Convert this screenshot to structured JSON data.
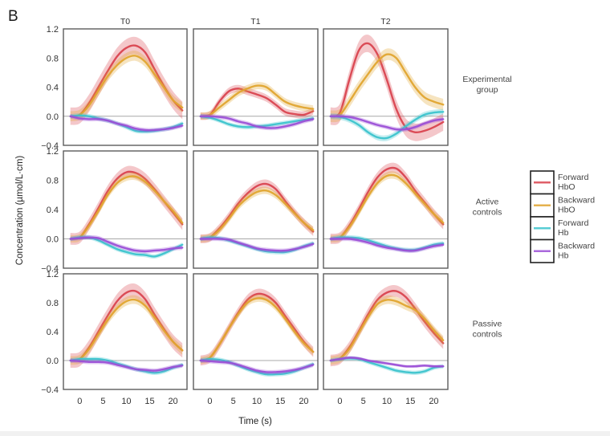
{
  "panel_label": "B",
  "chart_data": {
    "type": "line",
    "title": "",
    "xlabel": "Time (s)",
    "ylabel": "Concentration (µmol/L·cm)",
    "xlim": [
      -3.5,
      23
    ],
    "ylim": [
      -0.4,
      1.2
    ],
    "xticks": [
      0,
      5,
      10,
      15,
      20
    ],
    "yticks": [
      1.2,
      0.8,
      0.4,
      0.0,
      -0.4
    ],
    "ytick_labels": [
      "1.2",
      "0.8",
      "0.4",
      "0.0",
      "-0.4"
    ],
    "grid": false,
    "reference_line_y": 0.0,
    "columns": [
      "T0",
      "T1",
      "T2"
    ],
    "rows": [
      [
        "Experimental",
        "group"
      ],
      [
        "Active",
        "controls"
      ],
      [
        "Passive",
        "controls"
      ]
    ],
    "legend": {
      "placement": "right",
      "entries": [
        {
          "label": [
            "Forward",
            "HbO"
          ],
          "color": "#d9444f"
        },
        {
          "label": [
            "Backward",
            "HbO"
          ],
          "color": "#e0a530"
        },
        {
          "label": [
            "Forward",
            "Hb"
          ],
          "color": "#3cc4cc"
        },
        {
          "label": [
            "Backward",
            "Hb"
          ],
          "color": "#9b4fd6"
        }
      ]
    },
    "x": [
      -2,
      0,
      2,
      4,
      6,
      8,
      10,
      12,
      14,
      16,
      18,
      20,
      22
    ],
    "panels": [
      {
        "row": 0,
        "col": 0,
        "series": [
          {
            "name": "Forward HbO",
            "values": [
              0,
              0.02,
              0.18,
              0.4,
              0.62,
              0.82,
              0.94,
              0.97,
              0.88,
              0.65,
              0.42,
              0.22,
              0.08
            ],
            "ci": 0.12
          },
          {
            "name": "Backward HbO",
            "values": [
              0,
              0.02,
              0.15,
              0.35,
              0.55,
              0.7,
              0.8,
              0.83,
              0.75,
              0.58,
              0.4,
              0.22,
              0.12
            ],
            "ci": 0.07
          },
          {
            "name": "Forward Hb",
            "values": [
              0,
              0.01,
              0.0,
              -0.03,
              -0.06,
              -0.1,
              -0.15,
              -0.2,
              -0.21,
              -0.2,
              -0.18,
              -0.15,
              -0.1
            ],
            "ci": 0.03
          },
          {
            "name": "Backward Hb",
            "values": [
              0,
              -0.03,
              -0.04,
              -0.04,
              -0.06,
              -0.1,
              -0.13,
              -0.17,
              -0.19,
              -0.19,
              -0.18,
              -0.16,
              -0.13
            ],
            "ci": 0.03
          }
        ]
      },
      {
        "row": 0,
        "col": 1,
        "series": [
          {
            "name": "Forward HbO",
            "values": [
              0,
              0.02,
              0.2,
              0.34,
              0.38,
              0.34,
              0.3,
              0.25,
              0.16,
              0.06,
              0.03,
              0.02,
              0.07
            ],
            "ci": 0.05
          },
          {
            "name": "Backward HbO",
            "values": [
              0,
              0.02,
              0.12,
              0.22,
              0.32,
              0.38,
              0.42,
              0.4,
              0.3,
              0.2,
              0.15,
              0.12,
              0.1
            ],
            "ci": 0.05
          },
          {
            "name": "Forward Hb",
            "values": [
              0,
              -0.02,
              -0.06,
              -0.11,
              -0.14,
              -0.15,
              -0.14,
              -0.13,
              -0.11,
              -0.09,
              -0.07,
              -0.05,
              -0.03
            ],
            "ci": 0.03
          },
          {
            "name": "Backward Hb",
            "values": [
              0,
              0.0,
              -0.01,
              -0.03,
              -0.07,
              -0.1,
              -0.14,
              -0.16,
              -0.16,
              -0.14,
              -0.11,
              -0.07,
              -0.04
            ],
            "ci": 0.03
          }
        ]
      },
      {
        "row": 0,
        "col": 2,
        "series": [
          {
            "name": "Forward HbO",
            "values": [
              0,
              0.05,
              0.5,
              0.9,
              1.0,
              0.85,
              0.5,
              0.1,
              -0.15,
              -0.22,
              -0.2,
              -0.15,
              -0.08
            ],
            "ci": 0.12
          },
          {
            "name": "Backward HbO",
            "values": [
              0,
              0.02,
              0.2,
              0.4,
              0.58,
              0.75,
              0.85,
              0.8,
              0.6,
              0.4,
              0.26,
              0.2,
              0.16
            ],
            "ci": 0.08
          },
          {
            "name": "Forward Hb",
            "values": [
              0,
              -0.01,
              -0.05,
              -0.12,
              -0.22,
              -0.29,
              -0.3,
              -0.24,
              -0.14,
              -0.05,
              0.02,
              0.05,
              0.06
            ],
            "ci": 0.04
          },
          {
            "name": "Backward Hb",
            "values": [
              0,
              0.0,
              -0.01,
              -0.04,
              -0.08,
              -0.12,
              -0.15,
              -0.18,
              -0.18,
              -0.15,
              -0.1,
              -0.06,
              -0.04
            ],
            "ci": 0.03
          }
        ]
      },
      {
        "row": 1,
        "col": 0,
        "series": [
          {
            "name": "Forward HbO",
            "values": [
              0,
              0.02,
              0.2,
              0.42,
              0.65,
              0.82,
              0.91,
              0.9,
              0.82,
              0.68,
              0.52,
              0.36,
              0.2
            ],
            "ci": 0.08
          },
          {
            "name": "Backward HbO",
            "values": [
              0,
              0.02,
              0.18,
              0.38,
              0.6,
              0.76,
              0.84,
              0.85,
              0.78,
              0.66,
              0.52,
              0.38,
              0.22
            ],
            "ci": 0.05
          },
          {
            "name": "Forward Hb",
            "values": [
              0,
              0.02,
              0.02,
              -0.02,
              -0.08,
              -0.14,
              -0.18,
              -0.21,
              -0.22,
              -0.24,
              -0.2,
              -0.14,
              -0.08
            ],
            "ci": 0.03
          },
          {
            "name": "Backward Hb",
            "values": [
              0,
              0.01,
              0.02,
              0.01,
              -0.04,
              -0.09,
              -0.13,
              -0.16,
              -0.17,
              -0.16,
              -0.15,
              -0.13,
              -0.12
            ],
            "ci": 0.03
          }
        ]
      },
      {
        "row": 1,
        "col": 1,
        "series": [
          {
            "name": "Forward HbO",
            "values": [
              0,
              0.02,
              0.14,
              0.3,
              0.48,
              0.62,
              0.72,
              0.75,
              0.68,
              0.52,
              0.36,
              0.22,
              0.1
            ],
            "ci": 0.06
          },
          {
            "name": "Backward HbO",
            "values": [
              0,
              0.02,
              0.12,
              0.27,
              0.44,
              0.56,
              0.64,
              0.66,
              0.6,
              0.48,
              0.35,
              0.22,
              0.12
            ],
            "ci": 0.05
          },
          {
            "name": "Forward Hb",
            "values": [
              0,
              0.02,
              0.01,
              -0.02,
              -0.06,
              -0.1,
              -0.14,
              -0.17,
              -0.18,
              -0.18,
              -0.15,
              -0.1,
              -0.06
            ],
            "ci": 0.03
          },
          {
            "name": "Backward Hb",
            "values": [
              0,
              0.0,
              0.0,
              -0.01,
              -0.05,
              -0.09,
              -0.13,
              -0.15,
              -0.16,
              -0.16,
              -0.14,
              -0.11,
              -0.07
            ],
            "ci": 0.03
          }
        ]
      },
      {
        "row": 1,
        "col": 2,
        "series": [
          {
            "name": "Forward HbO",
            "values": [
              0,
              0.02,
              0.18,
              0.4,
              0.64,
              0.84,
              0.95,
              0.96,
              0.84,
              0.66,
              0.5,
              0.34,
              0.2
            ],
            "ci": 0.07
          },
          {
            "name": "Backward HbO",
            "values": [
              0,
              0.02,
              0.16,
              0.36,
              0.58,
              0.76,
              0.86,
              0.86,
              0.76,
              0.62,
              0.48,
              0.34,
              0.22
            ],
            "ci": 0.05
          },
          {
            "name": "Forward Hb",
            "values": [
              0,
              0.02,
              0.02,
              0.01,
              -0.02,
              -0.06,
              -0.1,
              -0.13,
              -0.15,
              -0.15,
              -0.12,
              -0.08,
              -0.06
            ],
            "ci": 0.03
          },
          {
            "name": "Backward Hb",
            "values": [
              0,
              0.0,
              0.0,
              -0.02,
              -0.05,
              -0.09,
              -0.12,
              -0.14,
              -0.16,
              -0.16,
              -0.13,
              -0.1,
              -0.08
            ],
            "ci": 0.03
          }
        ]
      },
      {
        "row": 2,
        "col": 0,
        "series": [
          {
            "name": "Forward HbO",
            "values": [
              0,
              0.02,
              0.18,
              0.4,
              0.62,
              0.82,
              0.94,
              0.96,
              0.85,
              0.64,
              0.44,
              0.26,
              0.14
            ],
            "ci": 0.1
          },
          {
            "name": "Backward HbO",
            "values": [
              0,
              0.02,
              0.16,
              0.36,
              0.56,
              0.72,
              0.82,
              0.84,
              0.76,
              0.6,
              0.42,
              0.26,
              0.14
            ],
            "ci": 0.06
          },
          {
            "name": "Forward Hb",
            "values": [
              0,
              0.02,
              0.02,
              0.02,
              0.0,
              -0.04,
              -0.08,
              -0.12,
              -0.15,
              -0.17,
              -0.15,
              -0.1,
              -0.06
            ],
            "ci": 0.03
          },
          {
            "name": "Backward Hb",
            "values": [
              0,
              -0.01,
              -0.02,
              -0.02,
              -0.03,
              -0.06,
              -0.09,
              -0.12,
              -0.13,
              -0.14,
              -0.12,
              -0.09,
              -0.07
            ],
            "ci": 0.03
          }
        ]
      },
      {
        "row": 2,
        "col": 1,
        "series": [
          {
            "name": "Forward HbO",
            "values": [
              0,
              0.04,
              0.22,
              0.44,
              0.66,
              0.84,
              0.92,
              0.9,
              0.8,
              0.62,
              0.44,
              0.26,
              0.12
            ],
            "ci": 0.07
          },
          {
            "name": "Backward HbO",
            "values": [
              0,
              0.04,
              0.22,
              0.44,
              0.64,
              0.8,
              0.86,
              0.84,
              0.74,
              0.58,
              0.4,
              0.24,
              0.12
            ],
            "ci": 0.05
          },
          {
            "name": "Forward Hb",
            "values": [
              0,
              0.02,
              0.01,
              -0.02,
              -0.07,
              -0.12,
              -0.16,
              -0.19,
              -0.19,
              -0.18,
              -0.15,
              -0.1,
              -0.05
            ],
            "ci": 0.03
          },
          {
            "name": "Backward Hb",
            "values": [
              0,
              -0.01,
              -0.02,
              -0.03,
              -0.06,
              -0.1,
              -0.14,
              -0.16,
              -0.16,
              -0.15,
              -0.13,
              -0.1,
              -0.06
            ],
            "ci": 0.03
          }
        ]
      },
      {
        "row": 2,
        "col": 2,
        "series": [
          {
            "name": "Forward HbO",
            "values": [
              0,
              0.03,
              0.18,
              0.4,
              0.64,
              0.84,
              0.94,
              0.96,
              0.88,
              0.72,
              0.54,
              0.38,
              0.24
            ],
            "ci": 0.08
          },
          {
            "name": "Backward HbO",
            "values": [
              0,
              0.03,
              0.16,
              0.38,
              0.6,
              0.78,
              0.84,
              0.82,
              0.76,
              0.7,
              0.58,
              0.42,
              0.28
            ],
            "ci": 0.06
          },
          {
            "name": "Forward Hb",
            "values": [
              0,
              0.02,
              0.03,
              0.02,
              -0.02,
              -0.06,
              -0.1,
              -0.14,
              -0.16,
              -0.17,
              -0.15,
              -0.1,
              -0.08
            ],
            "ci": 0.03
          },
          {
            "name": "Backward Hb",
            "values": [
              0,
              0.02,
              0.04,
              0.03,
              0.0,
              -0.02,
              -0.04,
              -0.06,
              -0.08,
              -0.08,
              -0.07,
              -0.08,
              -0.08
            ],
            "ci": 0.02
          }
        ]
      }
    ]
  }
}
